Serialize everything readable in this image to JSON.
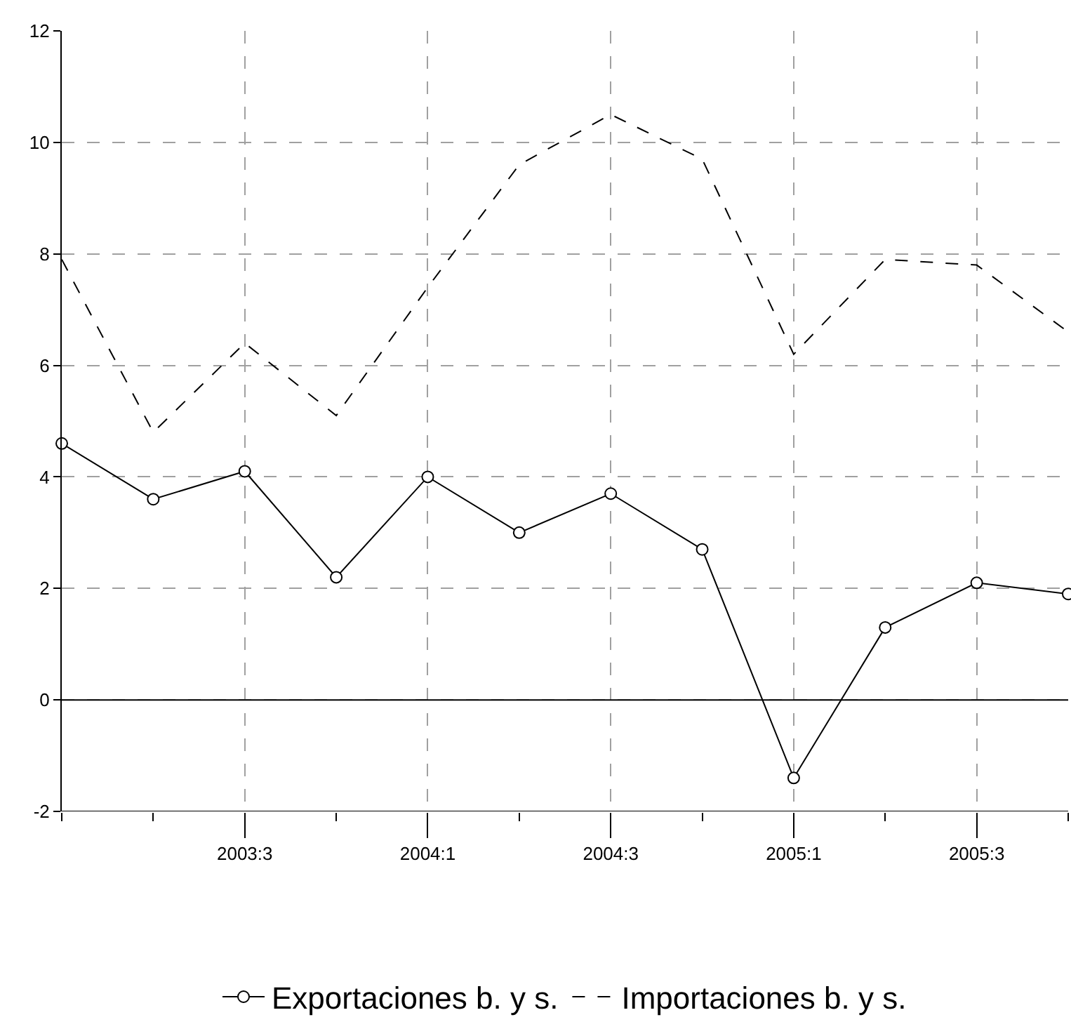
{
  "chart_data": {
    "type": "line",
    "categories": [
      null,
      null,
      "2003:3",
      null,
      "2004:1",
      null,
      "2004:3",
      null,
      "2005:1",
      null,
      "2005:3",
      null
    ],
    "series": [
      {
        "name": "Exportaciones b. y s.",
        "color": "#000000",
        "marker": "circle",
        "line_style": "solid",
        "values": [
          4.6,
          3.6,
          4.1,
          2.2,
          4.0,
          3.0,
          3.7,
          2.7,
          -1.4,
          1.3,
          2.1,
          1.9
        ]
      },
      {
        "name": "Importaciones b. y s.",
        "color": "#000000",
        "marker": "none",
        "line_style": "dashed",
        "values": [
          7.9,
          4.8,
          6.4,
          5.1,
          7.4,
          9.6,
          10.5,
          9.7,
          6.2,
          7.9,
          7.8,
          6.6
        ]
      }
    ],
    "ylim": [
      -2,
      12
    ],
    "yticks": [
      -2,
      0,
      2,
      4,
      6,
      8,
      10,
      12
    ],
    "ref_lines": [
      {
        "axis": "y",
        "value": 0,
        "color": "#000000",
        "line_style": "solid"
      }
    ],
    "grid": true,
    "legend": "bottom"
  }
}
